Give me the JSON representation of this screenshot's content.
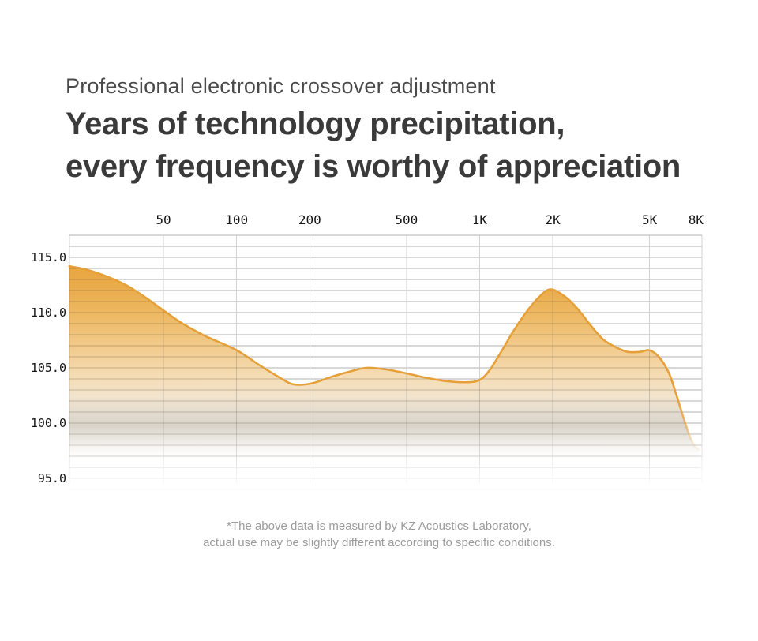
{
  "header": {
    "subtitle": "Professional electronic crossover adjustment",
    "title_line1": "Years of technology precipitation,",
    "title_line2": "every frequency is worthy of appreciation"
  },
  "chart_data": {
    "type": "area",
    "title": "",
    "xlabel": "",
    "ylabel": "",
    "x_scale": "log",
    "grid": true,
    "legend": "none",
    "x_tick_labels": [
      "50",
      "100",
      "200",
      "500",
      "1K",
      "2K",
      "5K",
      "8K"
    ],
    "x_tick_freqs": [
      50,
      100,
      200,
      500,
      1000,
      2000,
      5000,
      8000
    ],
    "y_tick_labels": [
      "115.0",
      "110.0",
      "105.0",
      "100.0",
      "95.0"
    ],
    "y_tick_values": [
      115,
      110,
      105,
      100,
      95
    ],
    "y_minor_step_db": 1,
    "x_range_hz": [
      20.5,
      8300
    ],
    "y_range_db": [
      94,
      117
    ],
    "series": [
      {
        "name": "frequency-response-db",
        "points": [
          [
            20.5,
            114.2
          ],
          [
            24,
            113.9
          ],
          [
            29,
            113.3
          ],
          [
            35,
            112.5
          ],
          [
            42,
            111.4
          ],
          [
            50,
            110.2
          ],
          [
            59,
            109.1
          ],
          [
            74,
            107.9
          ],
          [
            100,
            106.6
          ],
          [
            125,
            105.2
          ],
          [
            151,
            104.1
          ],
          [
            172,
            103.5
          ],
          [
            204,
            103.6
          ],
          [
            246,
            104.2
          ],
          [
            296,
            104.7
          ],
          [
            343,
            105.0
          ],
          [
            415,
            104.85
          ],
          [
            500,
            104.5
          ],
          [
            604,
            104.1
          ],
          [
            731,
            103.8
          ],
          [
            884,
            103.7
          ],
          [
            1000,
            103.9
          ],
          [
            1100,
            104.8
          ],
          [
            1230,
            106.5
          ],
          [
            1375,
            108.3
          ],
          [
            1540,
            109.9
          ],
          [
            1720,
            111.2
          ],
          [
            1950,
            112.1
          ],
          [
            2260,
            111.4
          ],
          [
            2540,
            110.3
          ],
          [
            2850,
            108.9
          ],
          [
            3210,
            107.6
          ],
          [
            3610,
            106.9
          ],
          [
            4060,
            106.45
          ],
          [
            4570,
            106.45
          ],
          [
            4990,
            106.6
          ],
          [
            5460,
            106.0
          ],
          [
            5990,
            104.6
          ],
          [
            6440,
            102.6
          ],
          [
            6830,
            100.8
          ],
          [
            7240,
            99.1
          ],
          [
            7630,
            98.0
          ],
          [
            7990,
            97.6
          ]
        ]
      }
    ],
    "colors": {
      "line": "#E6A039",
      "fill_top": "#E8A43C",
      "fill_mid": "#F2CD92",
      "fill_cream": "#F2E4CD",
      "fill_gray": "#D9D3C9",
      "grid_h": "#9E9E9E",
      "grid_v": "#C9C9C9",
      "tick_text": "#151515"
    }
  },
  "footer": {
    "line1": "*The above data is measured by KZ Acoustics Laboratory,",
    "line2": "actual use may be slightly different according to specific conditions."
  }
}
